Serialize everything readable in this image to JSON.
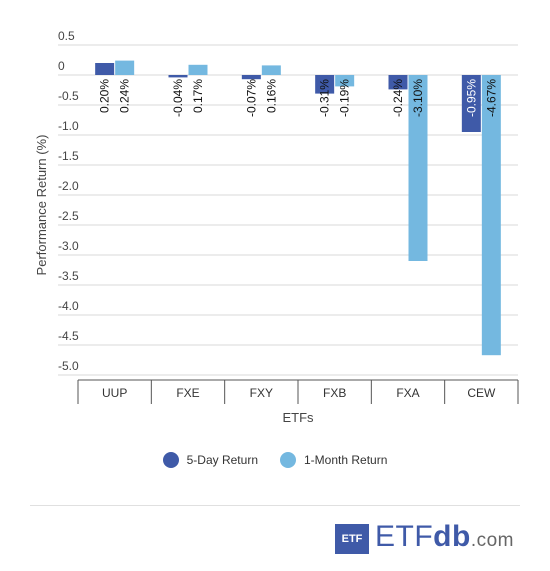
{
  "chart_data": {
    "type": "bar",
    "title": "",
    "xlabel": "ETFs",
    "ylabel": "Performance Return (%)",
    "ylim": [
      -5.0,
      0.5
    ],
    "y_ticks": [
      "0.5",
      "0",
      "-0.5",
      "-1.0",
      "-1.5",
      "-2.0",
      "-2.5",
      "-3.0",
      "-3.5",
      "-4.0",
      "-4.5",
      "-5.0"
    ],
    "grid": true,
    "legend_position": "bottom",
    "categories": [
      "UUP",
      "FXE",
      "FXY",
      "FXB",
      "FXA",
      "CEW"
    ],
    "series": [
      {
        "name": "5-Day Return",
        "color": "#3f5aa8",
        "values": [
          0.2,
          -0.04,
          -0.07,
          -0.31,
          -0.24,
          -0.95
        ],
        "labels": [
          "0.20%",
          "-0.04%",
          "-0.07%",
          "-0.31%",
          "-0.24%",
          "-0.95%"
        ]
      },
      {
        "name": "1-Month Return",
        "color": "#74b8e0",
        "values": [
          0.24,
          0.17,
          0.16,
          -0.19,
          -3.1,
          -4.67
        ],
        "labels": [
          "0.24%",
          "0.17%",
          "0.16%",
          "-0.19%",
          "-3.10%",
          "-4.67%"
        ]
      }
    ]
  },
  "legend": {
    "items": [
      {
        "label": "5-Day Return",
        "color": "#3f5aa8"
      },
      {
        "label": "1-Month Return",
        "color": "#74b8e0"
      }
    ]
  },
  "brand": {
    "box_text": "ETF",
    "wordmark_main": "ETF",
    "wordmark_db": "db",
    "wordmark_suffix": ".com",
    "color": "#3f5aa8"
  }
}
